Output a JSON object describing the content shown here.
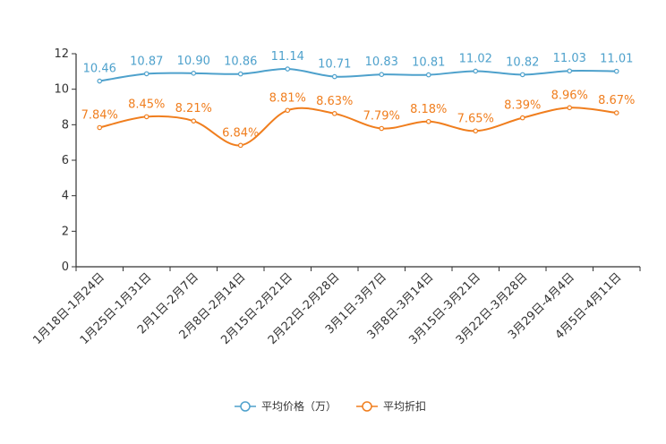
{
  "chart_data": {
    "type": "line",
    "title": "",
    "xlabel": "",
    "ylabel": "",
    "ylim": [
      0,
      12
    ],
    "yticks": [
      0,
      2,
      4,
      6,
      8,
      10,
      12
    ],
    "grid": false,
    "legend_position": "bottom-center",
    "categories": [
      "1月18日-1月24日",
      "1月25日-1月31日",
      "2月1日-2月7日",
      "2月8日-2月14日",
      "2月15日-2月21日",
      "2月22日-2月28日",
      "3月1日-3月7日",
      "3月8日-3月14日",
      "3月15日-3月21日",
      "3月22日-3月28日",
      "3月29日-4月4日",
      "4月5日-4月11日"
    ],
    "series": [
      {
        "name": "平均价格（万）",
        "color": "#4ea1cc",
        "values": [
          10.46,
          10.87,
          10.9,
          10.86,
          11.14,
          10.71,
          10.83,
          10.81,
          11.02,
          10.82,
          11.03,
          11.01
        ],
        "labels": [
          "10.46",
          "10.87",
          "10.90",
          "10.86",
          "11.14",
          "10.71",
          "10.83",
          "10.81",
          "11.02",
          "10.82",
          "11.03",
          "11.01"
        ]
      },
      {
        "name": "平均折扣",
        "color": "#f07e1e",
        "values": [
          7.84,
          8.45,
          8.21,
          6.84,
          8.81,
          8.63,
          7.79,
          8.18,
          7.65,
          8.39,
          8.96,
          8.67
        ],
        "labels": [
          "7.84%",
          "8.45%",
          "8.21%",
          "6.84%",
          "8.81%",
          "8.63%",
          "7.79%",
          "8.18%",
          "7.65%",
          "8.39%",
          "8.96%",
          "8.67%"
        ]
      }
    ]
  }
}
